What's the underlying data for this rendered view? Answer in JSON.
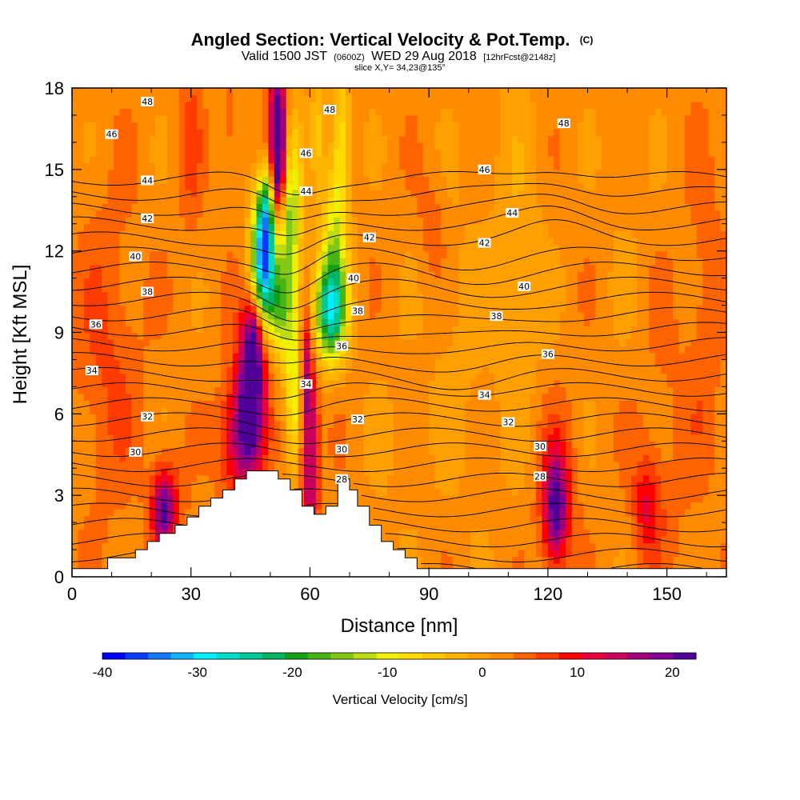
{
  "chart_data": {
    "type": "heatmap",
    "title": "Angled Section: Vertical Velocity & Pot.Temp.",
    "title_unit": "(C)",
    "subtitle_valid": "Valid 1500 JST",
    "subtitle_utc": "(0600Z)",
    "subtitle_date": "WED 29 Aug 2018",
    "subtitle_run": "[12hrFcst@2148z]",
    "slice_label": "slice X,Y= 34,23@135°",
    "xlabel": "Distance [nm]",
    "ylabel": "Height [Kft MSL]",
    "xlim": [
      0,
      165
    ],
    "ylim": [
      0,
      18
    ],
    "x_ticks": [
      0,
      30,
      60,
      90,
      120,
      150
    ],
    "y_ticks": [
      0,
      3,
      6,
      9,
      12,
      15,
      18
    ],
    "colorbar": {
      "label": "Vertical Velocity [cm/s]",
      "range": [
        -40,
        22.5
      ],
      "tick_values": [
        -40,
        -30,
        -20,
        -10,
        0,
        10,
        20
      ],
      "colors": [
        "#0000ff",
        "#0a3cff",
        "#1478ff",
        "#14b4ff",
        "#00f0ff",
        "#00dcc8",
        "#00c896",
        "#00b464",
        "#14a014",
        "#46b414",
        "#82c814",
        "#bedc14",
        "#f0f000",
        "#ffdc00",
        "#ffc800",
        "#ffb400",
        "#ffa000",
        "#ff8c00",
        "#ff6400",
        "#ff3c00",
        "#ff0000",
        "#e6003c",
        "#c8005a",
        "#a00078",
        "#820096",
        "#500096"
      ]
    },
    "background_velocity_cm_s": 2,
    "velocity_features": [
      {
        "x": 48,
        "z": 11.5,
        "sx": 2.2,
        "sz": 1.3,
        "w": -30
      },
      {
        "x": 49,
        "z": 13.5,
        "sx": 1.8,
        "sz": 1.2,
        "w": -24
      },
      {
        "x": 50,
        "z": 10.0,
        "sx": 2.5,
        "sz": 1.0,
        "w": -10
      },
      {
        "x": 55,
        "z": 13.0,
        "sx": 2.0,
        "sz": 2.5,
        "w": -17
      },
      {
        "x": 56,
        "z": 7.0,
        "sx": 1.3,
        "sz": 2.0,
        "w": -12
      },
      {
        "x": 53,
        "z": 9.5,
        "sx": 1.5,
        "sz": 1.5,
        "w": -8
      },
      {
        "x": 65,
        "z": 9.8,
        "sx": 3.0,
        "sz": 1.3,
        "w": -26
      },
      {
        "x": 66,
        "z": 12.5,
        "sx": 2.2,
        "sz": 2.0,
        "w": -11
      },
      {
        "x": 68,
        "z": 16.0,
        "sx": 1.6,
        "sz": 2.0,
        "w": -10
      },
      {
        "x": 62,
        "z": 16.5,
        "sx": 1.2,
        "sz": 1.5,
        "w": -6
      },
      {
        "x": 52,
        "z": 16.5,
        "sx": 1.5,
        "sz": 1.8,
        "w": 23
      },
      {
        "x": 52,
        "z": 14.5,
        "sx": 1.2,
        "sz": 1.2,
        "w": 14
      },
      {
        "x": 45,
        "z": 6.5,
        "sx": 2.5,
        "sz": 2.0,
        "w": 22
      },
      {
        "x": 46,
        "z": 9.0,
        "sx": 1.6,
        "sz": 1.3,
        "w": 14
      },
      {
        "x": 41,
        "z": 5.0,
        "sx": 3.0,
        "sz": 1.5,
        "w": 10
      },
      {
        "x": 60,
        "z": 4.5,
        "sx": 1.5,
        "sz": 2.5,
        "w": 16
      },
      {
        "x": 59,
        "z": 8.0,
        "sx": 1.0,
        "sz": 1.5,
        "w": 9
      },
      {
        "x": 23,
        "z": 2.4,
        "sx": 1.8,
        "sz": 1.0,
        "w": 14
      },
      {
        "x": 24,
        "z": 2.8,
        "sx": 3.0,
        "sz": 1.2,
        "w": 6
      },
      {
        "x": 122,
        "z": 2.5,
        "sx": 2.0,
        "sz": 1.3,
        "w": 16
      },
      {
        "x": 122,
        "z": 3.2,
        "sx": 3.5,
        "sz": 2.0,
        "w": 6
      },
      {
        "x": 145,
        "z": 2.6,
        "sx": 2.5,
        "sz": 1.3,
        "w": 8
      },
      {
        "x": 9,
        "z": 8.0,
        "sx": 6.0,
        "sz": 4.0,
        "w": 4
      },
      {
        "x": 30,
        "z": 16.0,
        "sx": 2.0,
        "sz": 2.5,
        "w": 4
      },
      {
        "x": 40,
        "z": 16.5,
        "sx": 1.5,
        "sz": 2.0,
        "w": 3
      },
      {
        "x": 91,
        "z": 13.0,
        "sx": 2.5,
        "sz": 1.5,
        "w": 3
      },
      {
        "x": 97,
        "z": 8.5,
        "sx": 5.0,
        "sz": 4.0,
        "w": -2
      },
      {
        "x": 112,
        "z": 11.5,
        "sx": 5.0,
        "sz": 5.0,
        "w": -3
      },
      {
        "x": 140,
        "z": 12.0,
        "sx": 4.0,
        "sz": 4.0,
        "w": -1
      },
      {
        "x": 80,
        "z": 5.0,
        "sx": 4.0,
        "sz": 3.0,
        "w": -1
      },
      {
        "x": 150,
        "z": 5.0,
        "sx": 6.0,
        "sz": 4.0,
        "w": 2
      },
      {
        "x": 160,
        "z": 10.0,
        "sx": 3.0,
        "sz": 4.0,
        "w": 3
      }
    ],
    "terrain": {
      "x": [
        0,
        9,
        9,
        13,
        13,
        16,
        16,
        19,
        19,
        22,
        22,
        26,
        26,
        29,
        29,
        32,
        32,
        35,
        35,
        38,
        38,
        41,
        41,
        44,
        44,
        47,
        47,
        52,
        52,
        55,
        55,
        58,
        58,
        61,
        61,
        64,
        64,
        67,
        67,
        70,
        70,
        72,
        72,
        75,
        75,
        78,
        78,
        81,
        81,
        84,
        84,
        87,
        87,
        90,
        90,
        165
      ],
      "z": [
        0.3,
        0.3,
        0.7,
        0.7,
        0.7,
        0.7,
        1.0,
        1.0,
        1.3,
        1.3,
        1.6,
        1.6,
        1.9,
        1.9,
        2.2,
        2.2,
        2.6,
        2.6,
        2.9,
        2.9,
        3.2,
        3.2,
        3.6,
        3.6,
        3.9,
        3.9,
        3.9,
        3.9,
        3.6,
        3.6,
        3.2,
        3.2,
        2.6,
        2.6,
        2.3,
        2.3,
        2.6,
        2.6,
        3.6,
        3.6,
        3.2,
        3.2,
        2.6,
        2.6,
        1.9,
        1.9,
        1.3,
        1.3,
        1.0,
        1.0,
        0.7,
        0.7,
        0.3,
        0.3,
        0.3,
        0.3
      ]
    },
    "pot_temp_levels": [
      24,
      25,
      26,
      27,
      28,
      29,
      30,
      31,
      32,
      33,
      34,
      35,
      36,
      37,
      38,
      39,
      40,
      41,
      42,
      43,
      44,
      45,
      46,
      47,
      48,
      49,
      50
    ],
    "contour_labels": [
      {
        "x": 19,
        "z": 17.5,
        "text": "48"
      },
      {
        "x": 65,
        "z": 17.2,
        "text": "48"
      },
      {
        "x": 124,
        "z": 16.7,
        "text": "48"
      },
      {
        "x": 10,
        "z": 16.3,
        "text": "46"
      },
      {
        "x": 59,
        "z": 15.6,
        "text": "46"
      },
      {
        "x": 104,
        "z": 15.0,
        "text": "46"
      },
      {
        "x": 19,
        "z": 14.6,
        "text": "44"
      },
      {
        "x": 59,
        "z": 14.2,
        "text": "44"
      },
      {
        "x": 111,
        "z": 13.4,
        "text": "44"
      },
      {
        "x": 19,
        "z": 13.2,
        "text": "42"
      },
      {
        "x": 75,
        "z": 12.5,
        "text": "42"
      },
      {
        "x": 104,
        "z": 12.3,
        "text": "42"
      },
      {
        "x": 16,
        "z": 11.8,
        "text": "40"
      },
      {
        "x": 71,
        "z": 11.0,
        "text": "40"
      },
      {
        "x": 114,
        "z": 10.7,
        "text": "40"
      },
      {
        "x": 19,
        "z": 10.5,
        "text": "38"
      },
      {
        "x": 72,
        "z": 9.8,
        "text": "38"
      },
      {
        "x": 107,
        "z": 9.6,
        "text": "38"
      },
      {
        "x": 6,
        "z": 9.3,
        "text": "36"
      },
      {
        "x": 68,
        "z": 8.5,
        "text": "36"
      },
      {
        "x": 120,
        "z": 8.2,
        "text": "36"
      },
      {
        "x": 5,
        "z": 7.6,
        "text": "34"
      },
      {
        "x": 59,
        "z": 7.1,
        "text": "34"
      },
      {
        "x": 104,
        "z": 6.7,
        "text": "34"
      },
      {
        "x": 19,
        "z": 5.9,
        "text": "32"
      },
      {
        "x": 72,
        "z": 5.8,
        "text": "32"
      },
      {
        "x": 110,
        "z": 5.7,
        "text": "32"
      },
      {
        "x": 16,
        "z": 4.6,
        "text": "30"
      },
      {
        "x": 68,
        "z": 4.7,
        "text": "30"
      },
      {
        "x": 118,
        "z": 4.8,
        "text": "30"
      },
      {
        "x": 68,
        "z": 3.6,
        "text": "28"
      },
      {
        "x": 118,
        "z": 3.7,
        "text": "28"
      }
    ]
  }
}
